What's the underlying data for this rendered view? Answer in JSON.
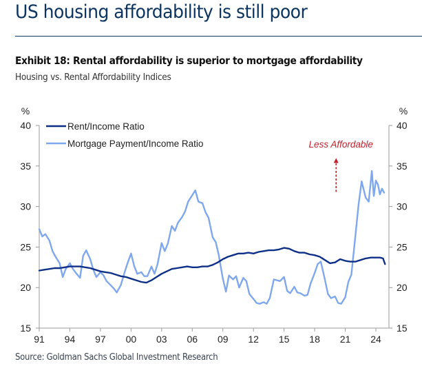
{
  "header": {
    "title": "US housing affordability is still poor"
  },
  "exhibit": {
    "title": "Exhibit 18: Rental affordability is superior to mortgage affordability",
    "subtitle": "Housing vs. Rental Affordability Indices",
    "source": "Source: Goldman Sachs Global Investment Research"
  },
  "chart_data": {
    "type": "line",
    "title": "Housing vs. Rental Affordability Indices",
    "xlabel": "",
    "ylabel": "%",
    "ylabel_right": "%",
    "xlim": [
      1991,
      2025
    ],
    "ylim": [
      15,
      40
    ],
    "yticks": [
      15,
      20,
      25,
      30,
      35,
      40
    ],
    "ytick_labels": [
      "15",
      "20",
      "25",
      "30",
      "35",
      "40"
    ],
    "xticks": [
      1991,
      1994,
      1997,
      2000,
      2003,
      2006,
      2009,
      2012,
      2015,
      2018,
      2021,
      2024
    ],
    "xtick_labels": [
      "91",
      "94",
      "97",
      "00",
      "03",
      "06",
      "09",
      "12",
      "15",
      "18",
      "21",
      "24"
    ],
    "grid": false,
    "dual_axis": true,
    "legend_position": "top-left",
    "colors": {
      "rent": "#0d2f87",
      "mortgage": "#7fa7ee",
      "annotation": "#c0202a"
    },
    "annotation": {
      "text": "Less Affordable",
      "x": 2020.1,
      "y_text": 37.7,
      "arrow_from": 31.8,
      "arrow_to": 35.8
    },
    "series": [
      {
        "name": "Rent/Income Ratio",
        "x": [
          1991.0,
          1991.5,
          1992.0,
          1992.5,
          1993.0,
          1993.5,
          1994.0,
          1994.5,
          1995.0,
          1995.5,
          1996.0,
          1996.5,
          1997.0,
          1997.5,
          1998.0,
          1998.5,
          1999.0,
          1999.5,
          2000.0,
          2000.5,
          2001.0,
          2001.5,
          2002.0,
          2002.5,
          2003.0,
          2003.5,
          2004.0,
          2004.5,
          2005.0,
          2005.5,
          2006.0,
          2006.5,
          2007.0,
          2007.5,
          2008.0,
          2008.5,
          2009.0,
          2009.5,
          2010.0,
          2010.5,
          2011.0,
          2011.5,
          2012.0,
          2012.5,
          2013.0,
          2013.5,
          2014.0,
          2014.5,
          2015.0,
          2015.5,
          2016.0,
          2016.5,
          2017.0,
          2017.5,
          2018.0,
          2018.5,
          2019.0,
          2019.5,
          2020.0,
          2020.5,
          2021.0,
          2021.5,
          2022.0,
          2022.5,
          2023.0,
          2023.5,
          2024.0,
          2024.4,
          2024.7,
          2024.9
        ],
        "values": [
          22.1,
          22.2,
          22.3,
          22.4,
          22.4,
          22.5,
          22.6,
          22.6,
          22.6,
          22.5,
          22.4,
          22.2,
          22.0,
          21.9,
          21.8,
          21.6,
          21.4,
          21.3,
          21.1,
          20.9,
          20.7,
          20.6,
          20.9,
          21.3,
          21.7,
          22.0,
          22.3,
          22.4,
          22.5,
          22.6,
          22.5,
          22.5,
          22.6,
          22.6,
          22.8,
          23.1,
          23.5,
          23.8,
          24.0,
          24.2,
          24.2,
          24.3,
          24.2,
          24.4,
          24.5,
          24.6,
          24.6,
          24.7,
          24.9,
          24.8,
          24.5,
          24.3,
          24.3,
          24.1,
          24.0,
          23.8,
          23.4,
          23.0,
          23.1,
          23.5,
          23.3,
          23.2,
          23.2,
          23.4,
          23.6,
          23.7,
          23.7,
          23.7,
          23.6,
          22.9
        ]
      },
      {
        "name": "Mortgage Payment/Income Ratio",
        "x": [
          1991.0,
          1991.3,
          1991.6,
          1992.0,
          1992.3,
          1992.6,
          1993.0,
          1993.3,
          1993.6,
          1994.0,
          1994.3,
          1994.6,
          1995.0,
          1995.3,
          1995.6,
          1996.0,
          1996.3,
          1996.6,
          1997.0,
          1997.3,
          1997.6,
          1998.0,
          1998.3,
          1998.6,
          1999.0,
          1999.3,
          1999.6,
          2000.0,
          2000.3,
          2000.6,
          2001.0,
          2001.3,
          2001.6,
          2002.0,
          2002.3,
          2002.6,
          2003.0,
          2003.3,
          2003.6,
          2004.0,
          2004.3,
          2004.6,
          2005.0,
          2005.3,
          2005.6,
          2006.0,
          2006.3,
          2006.6,
          2007.0,
          2007.3,
          2007.6,
          2008.0,
          2008.3,
          2008.6,
          2009.0,
          2009.3,
          2009.6,
          2010.0,
          2010.3,
          2010.6,
          2011.0,
          2011.3,
          2011.6,
          2012.0,
          2012.3,
          2012.6,
          2013.0,
          2013.3,
          2013.6,
          2014.0,
          2014.3,
          2014.6,
          2015.0,
          2015.3,
          2015.6,
          2016.0,
          2016.3,
          2016.6,
          2017.0,
          2017.3,
          2017.6,
          2018.0,
          2018.3,
          2018.6,
          2019.0,
          2019.3,
          2019.6,
          2020.0,
          2020.3,
          2020.6,
          2021.0,
          2021.3,
          2021.6,
          2022.0,
          2022.3,
          2022.6,
          2023.0,
          2023.3,
          2023.6,
          2023.8,
          2024.0,
          2024.2,
          2024.4,
          2024.6,
          2024.8
        ],
        "values": [
          27.2,
          26.3,
          26.6,
          25.8,
          24.5,
          23.8,
          23.0,
          21.3,
          22.3,
          23.0,
          22.3,
          21.8,
          21.2,
          23.9,
          24.6,
          23.5,
          22.2,
          21.3,
          21.9,
          21.5,
          20.8,
          20.3,
          19.9,
          19.4,
          20.3,
          21.6,
          22.8,
          24.2,
          22.7,
          21.7,
          21.9,
          21.4,
          21.4,
          22.6,
          21.7,
          22.9,
          25.5,
          24.5,
          25.4,
          27.6,
          27.0,
          28.0,
          28.7,
          29.4,
          30.6,
          31.4,
          32.0,
          30.6,
          30.4,
          29.3,
          28.6,
          26.2,
          25.6,
          24.0,
          21.1,
          19.5,
          21.5,
          21.0,
          21.4,
          20.0,
          21.2,
          20.8,
          19.2,
          18.6,
          18.1,
          18.0,
          18.2,
          18.0,
          18.7,
          21.0,
          20.9,
          20.8,
          21.3,
          19.6,
          19.3,
          20.1,
          19.4,
          19.3,
          19.0,
          19.1,
          20.5,
          21.8,
          22.9,
          23.2,
          21.0,
          19.2,
          18.7,
          18.9,
          18.1,
          18.0,
          18.8,
          20.7,
          21.6,
          26.5,
          30.2,
          33.1,
          31.1,
          30.6,
          34.4,
          31.3,
          33.2,
          32.7,
          31.5,
          32.2,
          31.7
        ]
      }
    ]
  }
}
